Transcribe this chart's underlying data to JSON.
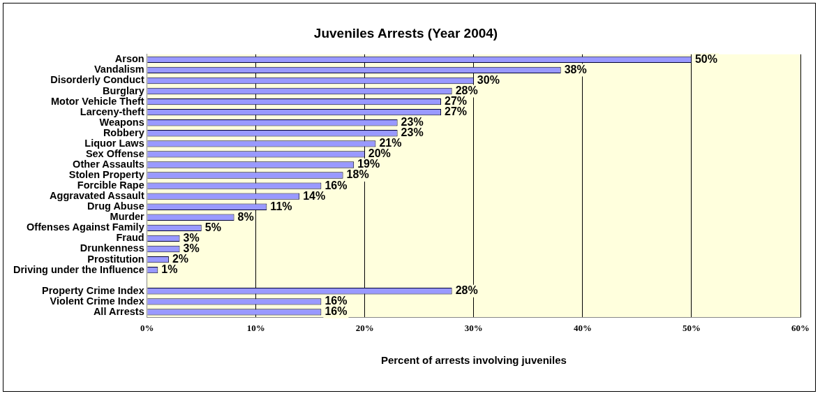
{
  "chart_data": {
    "type": "bar",
    "orientation": "horizontal",
    "title": "Juveniles Arrests (Year 2004)",
    "xlabel": "Percent of arrests involving juveniles",
    "categories": [
      "Arson",
      "Vandalism",
      "Disorderly Conduct",
      "Burglary",
      "Motor Vehicle Theft",
      "Larceny-theft",
      "Weapons",
      "Robbery",
      "Liquor Laws",
      "Sex Offense",
      "Other Assaults",
      "Stolen Property",
      "Forcible Rape",
      "Aggravated Assault",
      "Drug Abuse",
      "Murder",
      "Offenses Against Family",
      "Fraud",
      "Drunkenness",
      "Prostitution",
      "Driving under the Influence",
      null,
      "Property Crime Index",
      "Violent Crime Index",
      "All Arrests"
    ],
    "values": [
      50,
      38,
      30,
      28,
      27,
      27,
      23,
      23,
      21,
      20,
      19,
      18,
      16,
      14,
      11,
      8,
      5,
      3,
      3,
      2,
      1,
      null,
      28,
      16,
      16
    ],
    "value_labels": [
      "50%",
      "38%",
      "30%",
      "28%",
      "27%",
      "27%",
      "23%",
      "23%",
      "21%",
      "20%",
      "19%",
      "18%",
      "16%",
      "14%",
      "11%",
      "8%",
      "5%",
      "3%",
      "3%",
      "2%",
      "1%",
      null,
      "28%",
      "16%",
      "16%"
    ],
    "color": "#9999ff",
    "xlim": [
      0,
      60
    ],
    "xticks": [
      {
        "value": 0,
        "label": "0%"
      },
      {
        "value": 10,
        "label": "10%"
      },
      {
        "value": 20,
        "label": "20%"
      },
      {
        "value": 30,
        "label": "30%"
      },
      {
        "value": 40,
        "label": "40%"
      },
      {
        "value": 50,
        "label": "50%"
      },
      {
        "value": 60,
        "label": "60%"
      }
    ],
    "grid": "x",
    "legend": false
  }
}
